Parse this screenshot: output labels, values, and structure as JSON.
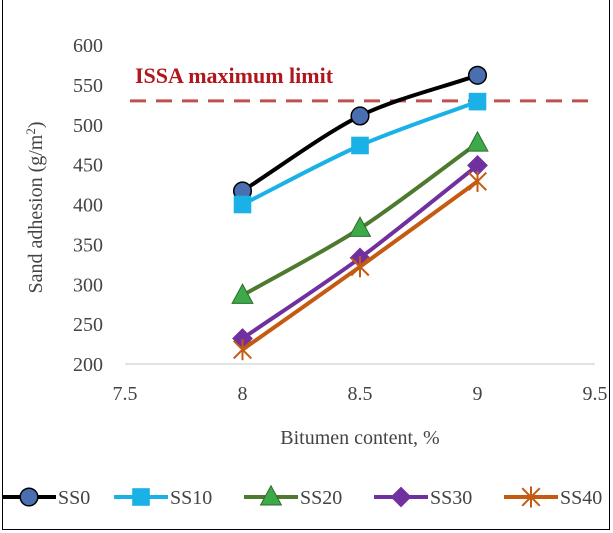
{
  "chart_data": {
    "type": "line",
    "title": "",
    "xlabel": "Bitumen content, %",
    "ylabel": "Sand adhesion (g/m2)",
    "ylabel_main": "Sand adhesion (g/m",
    "ylabel_sup": "2",
    "ylabel_close": ")",
    "xlim": [
      7.5,
      9.5
    ],
    "ylim": [
      200,
      600
    ],
    "xticks": [
      "7.5",
      "8",
      "8.5",
      "9",
      "9.5"
    ],
    "xtick_values": [
      7.5,
      8,
      8.5,
      9,
      9.5
    ],
    "yticks": [
      "200",
      "250",
      "300",
      "350",
      "400",
      "450",
      "500",
      "550",
      "600"
    ],
    "ytick_values": [
      200,
      250,
      300,
      350,
      400,
      450,
      500,
      550,
      600
    ],
    "grid": false,
    "legend_position": "bottom",
    "x": [
      8,
      8.5,
      9
    ],
    "series": [
      {
        "name": "SS0",
        "values": [
          417,
          511,
          562
        ],
        "color": "#000000",
        "marker": "circle",
        "marker_fill": "#4a6fb0"
      },
      {
        "name": "SS10",
        "values": [
          400,
          474,
          529
        ],
        "color": "#19b1e6",
        "marker": "square",
        "marker_fill": "#19b1e6"
      },
      {
        "name": "SS20",
        "values": [
          286,
          370,
          477
        ],
        "color": "#4e7a2f",
        "marker": "triangle",
        "marker_fill": "#3daa4a"
      },
      {
        "name": "SS30",
        "values": [
          232,
          333,
          449
        ],
        "color": "#7030a0",
        "marker": "diamond",
        "marker_fill": "#7030a0"
      },
      {
        "name": "SS40",
        "values": [
          218,
          322,
          429
        ],
        "color": "#c55a11",
        "marker": "star",
        "marker_fill": "#c55a11"
      }
    ],
    "reference_line": {
      "label": "ISSA maximum limit",
      "value": 530,
      "color": "#c0504d",
      "style": "dashed"
    },
    "annotation": {
      "text": "ISSA maximum limit",
      "color": "#b0161c"
    }
  }
}
